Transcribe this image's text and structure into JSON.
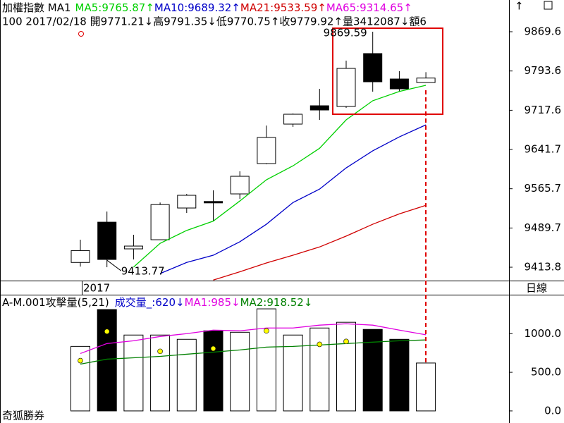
{
  "chart_data": [
    {
      "type": "candlestick",
      "title": "加權指數 MA1",
      "legend": [
        {
          "text": "MA5:9765.87↑",
          "color": "#00d000"
        },
        {
          "text": "MA10:9689.32↑",
          "color": "#0000c8"
        },
        {
          "text": "MA21:9533.59↑",
          "color": "#d00000"
        },
        {
          "text": "MA65:9314.65↑",
          "color": "#e000e0"
        }
      ],
      "info": "100 2017/02/18 開9771.21↓高9791.35↓低9770.75↑收9779.92↑量3412087↓額6",
      "x_label": "2017",
      "period": "日線",
      "annotations": [
        {
          "text": "9869.59",
          "value": 9869.59
        },
        {
          "text": "9413.77",
          "value": 9413.77
        }
      ],
      "up_color": "#ffffff",
      "down_color": "#000000",
      "open": [
        9423,
        9501,
        9449.3,
        9467,
        9528.4,
        9541,
        9555.7,
        9614.4,
        9690.8,
        9726.3,
        9724.9,
        9827.3,
        9778.1,
        9771.21
      ],
      "high": [
        9467,
        9521.6,
        9476.6,
        9539,
        9555.7,
        9562.5,
        9599.4,
        9688,
        9711.3,
        9759,
        9813.6,
        9869.59,
        9793.2,
        9791.35
      ],
      "low": [
        9415,
        9413.77,
        9428.8,
        9467,
        9518.9,
        9503.9,
        9546.2,
        9613,
        9685.4,
        9699,
        9722.2,
        9753.6,
        9753.6,
        9770.75
      ],
      "close": [
        9446,
        9428.8,
        9454.7,
        9535,
        9553,
        9540,
        9589.8,
        9664.9,
        9709.9,
        9718.1,
        9798.6,
        9772.7,
        9759,
        9779.92
      ],
      "series": [
        {
          "color": "#00d000",
          "values": [
            null,
            null,
            9414,
            9460,
            9485,
            9503,
            9542,
            9583,
            9610,
            9644,
            9699,
            9736,
            9754,
            9765.87
          ]
        },
        {
          "color": "#0000c8",
          "values": [
            null,
            null,
            null,
            9401.5,
            9423,
            9437,
            9463,
            9497,
            9539,
            9565,
            9606,
            9639,
            9666,
            9689.32
          ]
        },
        {
          "color": "#d00000",
          "values": [
            null,
            null,
            null,
            null,
            null,
            9389,
            9405,
            9422,
            9437,
            9453,
            9474,
            9497,
            9517,
            9533.59
          ]
        }
      ],
      "ylim": [
        9387.9,
        9931.0
      ],
      "yticks": [
        9413.8,
        9489.7,
        9565.7,
        9641.7,
        9717.6,
        9793.6,
        9869.6
      ]
    },
    {
      "type": "bar",
      "title": "A-M.001攻擊量(5,21)",
      "legend": [
        {
          "text": "成交量_:620↓",
          "color": "#0000c8"
        },
        {
          "text": "MA1:985↓",
          "color": "#e000e0"
        },
        {
          "text": "MA2:918.52↓",
          "color": "#008000"
        }
      ],
      "footer": "奇狐勝券",
      "values": [
        835,
        1312,
        982,
        982,
        927,
        1037,
        1018,
        1321,
        982,
        1073,
        1147,
        1055,
        927,
        620
      ],
      "colors": [
        "#ffffff",
        "#000000",
        "#ffffff",
        "#ffffff",
        "#ffffff",
        "#000000",
        "#ffffff",
        "#ffffff",
        "#ffffff",
        "#ffffff",
        "#ffffff",
        "#000000",
        "#000000",
        "#ffffff"
      ],
      "series": [
        {
          "color": "#e000e0",
          "values": [
            743,
            872,
            908,
            963,
            1000,
            1046,
            1037,
            1073,
            1073,
            1110,
            1128,
            1110,
            1046,
            985
          ]
        },
        {
          "color": "#008000",
          "values": [
            606,
            670,
            688,
            706,
            734,
            761,
            789,
            826,
            835,
            853,
            872,
            890,
            908,
            918.52
          ]
        }
      ],
      "points": {
        "color": "#ffff00",
        "values": [
          651,
          1028,
          null,
          771,
          null,
          807,
          null,
          1037,
          null,
          862,
          899,
          null,
          null,
          null
        ]
      },
      "ylim": [
        -156,
        1495
      ],
      "yticks": [
        {
          "value": 0,
          "label": "0.0"
        },
        {
          "value": 500,
          "label": "500.0"
        },
        {
          "value": 1000,
          "label": "1000.0"
        }
      ]
    }
  ]
}
